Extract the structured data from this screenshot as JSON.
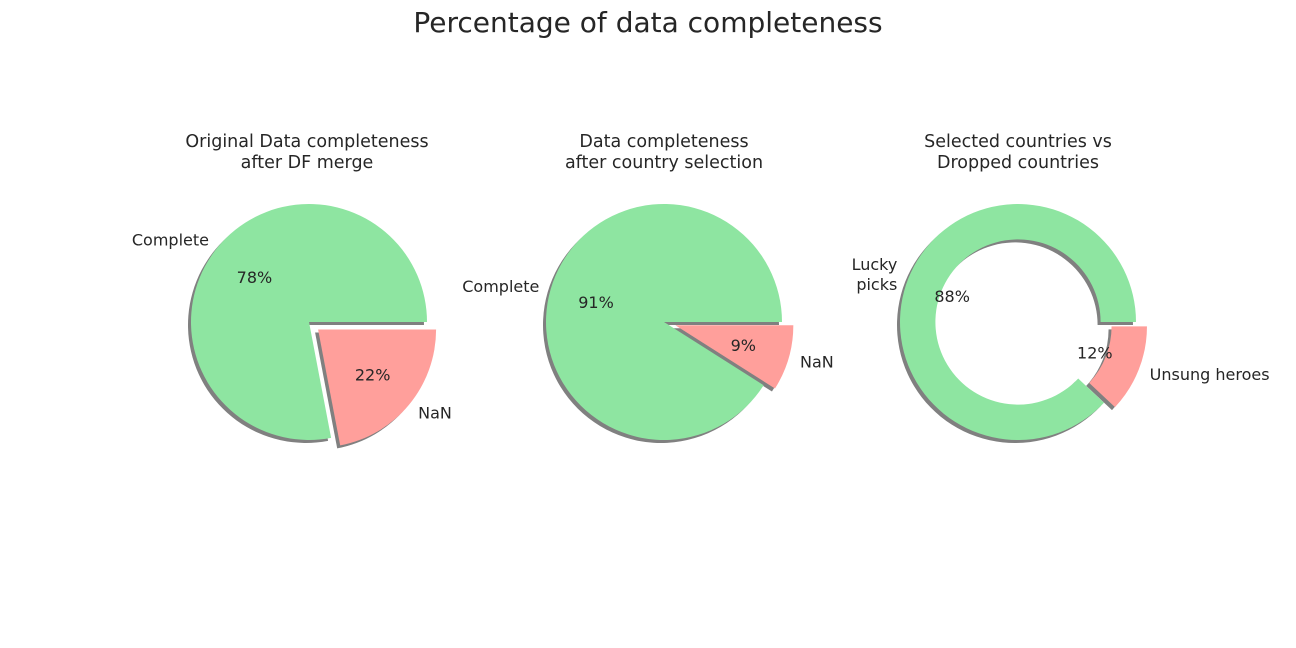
{
  "suptitle": "Percentage of data completeness",
  "colors": {
    "complete": "#8ee5a1",
    "nan": "#ff9f9b",
    "shadow": "#808080"
  },
  "chart_data": [
    {
      "type": "pie",
      "title": "Original Data completeness\nafter DF merge",
      "labels": [
        "Complete",
        "NaN"
      ],
      "values": [
        78,
        22
      ],
      "autopct": [
        "78%",
        "22%"
      ],
      "explode": [
        0,
        0.1
      ],
      "shadow": true,
      "donut": false
    },
    {
      "type": "pie",
      "title": "Data completeness\nafter country selection",
      "labels": [
        "Complete",
        "NaN"
      ],
      "values": [
        91,
        9
      ],
      "autopct": [
        "91%",
        "9%"
      ],
      "explode": [
        0,
        0.1
      ],
      "shadow": true,
      "donut": false
    },
    {
      "type": "pie",
      "title": "Selected countries vs\nDropped countries",
      "labels": [
        "Lucky\npicks",
        "Unsung heroes"
      ],
      "values": [
        88,
        12
      ],
      "autopct": [
        "88%",
        "12%"
      ],
      "explode": [
        0,
        0.1
      ],
      "shadow": true,
      "donut": true
    }
  ]
}
